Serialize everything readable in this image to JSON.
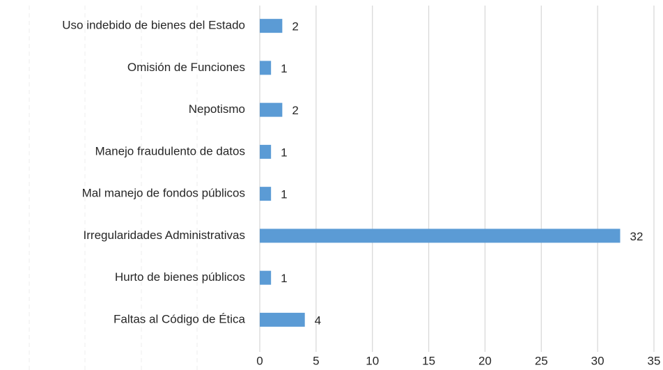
{
  "chart_data": {
    "type": "bar",
    "orientation": "horizontal",
    "categories": [
      "Uso indebido de bienes del Estado",
      "Omisión de Funciones",
      "Nepotismo",
      "Manejo fraudulento de datos",
      "Mal manejo de fondos públicos",
      "Irregularidades Administrativas",
      "Hurto de bienes públicos",
      "Faltas al Código de Ética"
    ],
    "values": [
      2,
      1,
      2,
      1,
      1,
      32,
      1,
      4
    ],
    "color": "#5b9bd5",
    "xlim": [
      0,
      35
    ],
    "xticks": [
      0,
      5,
      10,
      15,
      20,
      25,
      30,
      35
    ],
    "grid": true
  }
}
